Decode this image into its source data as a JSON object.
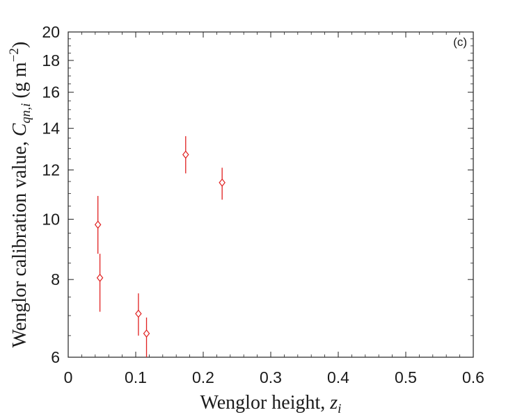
{
  "chart_data": {
    "type": "scatter",
    "panel_label": "(c)",
    "xlabel": {
      "text": "Wenglor height, ",
      "var": "z",
      "sub": "i"
    },
    "ylabel": {
      "text": "Wenglor calibration value, ",
      "var": "C",
      "sub": "qn,i",
      "unit_open": " (g m",
      "unit_exp": "−2",
      "unit_close": ")"
    },
    "xlim": [
      0,
      0.6
    ],
    "ylim": [
      6,
      20
    ],
    "yscale": "log",
    "x_ticks": [
      0,
      0.1,
      0.2,
      0.3,
      0.4,
      0.5,
      0.6
    ],
    "x_tick_labels": [
      "0",
      "0.1",
      "0.2",
      "0.3",
      "0.4",
      "0.5",
      "0.6"
    ],
    "y_ticks": [
      6,
      8,
      10,
      12,
      14,
      16,
      18,
      20
    ],
    "y_tick_labels": [
      "6",
      "8",
      "10",
      "12",
      "14",
      "16",
      "18",
      "20"
    ],
    "grid": false,
    "marker": "diamond",
    "color": "#e02020",
    "points": [
      {
        "x": 0.044,
        "y": 9.8,
        "y_low": 8.8,
        "y_high": 10.9
      },
      {
        "x": 0.047,
        "y": 8.05,
        "y_low": 7.1,
        "y_high": 8.8
      },
      {
        "x": 0.104,
        "y": 7.05,
        "y_low": 6.5,
        "y_high": 7.6
      },
      {
        "x": 0.116,
        "y": 6.55,
        "y_low": 5.9,
        "y_high": 6.95
      },
      {
        "x": 0.174,
        "y": 12.7,
        "y_low": 11.85,
        "y_high": 13.6
      },
      {
        "x": 0.228,
        "y": 11.45,
        "y_low": 10.75,
        "y_high": 12.1
      }
    ]
  }
}
